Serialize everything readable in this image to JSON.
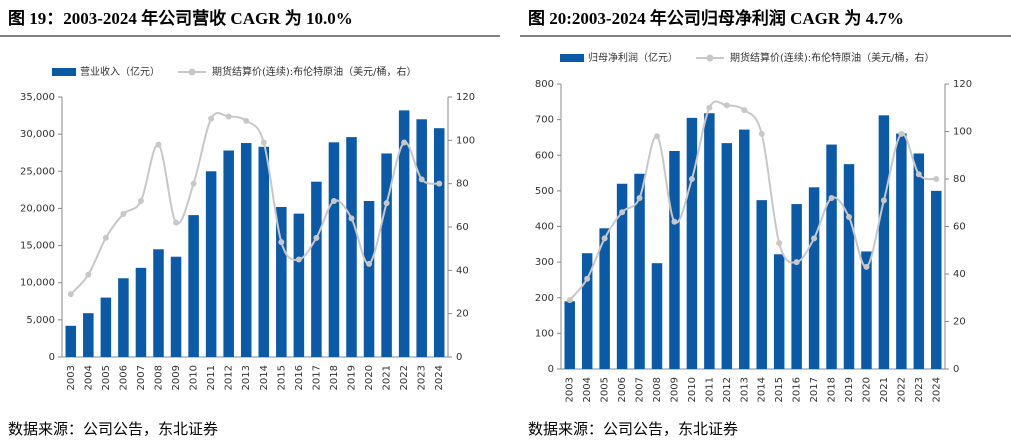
{
  "chart_data": [
    {
      "type": "bar",
      "title": "图 19：2003-2024 年公司营收 CAGR 为 10.0%",
      "categories": [
        "2003",
        "2004",
        "2005",
        "2006",
        "2007",
        "2008",
        "2009",
        "2010",
        "2011",
        "2012",
        "2013",
        "2014",
        "2015",
        "2016",
        "2017",
        "2018",
        "2019",
        "2020",
        "2021",
        "2022",
        "2023",
        "2024"
      ],
      "series": [
        {
          "name": "营业收入（亿元）",
          "color": "#0b5aa8",
          "values": [
            4200,
            5900,
            8000,
            10600,
            12000,
            14500,
            13500,
            19100,
            25000,
            27800,
            28800,
            28300,
            20200,
            19300,
            23600,
            28900,
            29600,
            21000,
            27400,
            33200,
            32000,
            30800
          ]
        },
        {
          "name": "期货结算价(连续):布伦特原油（美元/桶，右）",
          "color": "#c8c8c8",
          "type": "line",
          "axis": "y2",
          "values": [
            29,
            38,
            55,
            66,
            72,
            98,
            62,
            80,
            110,
            111,
            109,
            99,
            53,
            45,
            55,
            72,
            64,
            43,
            71,
            99,
            82,
            80
          ]
        }
      ],
      "ylim": [
        0,
        35000
      ],
      "yticks": [
        0,
        {
          "value": 5000,
          "label": "5,000"
        },
        {
          "value": 10000,
          "label": "10,000"
        },
        {
          "value": 15000,
          "label": "15,000"
        },
        {
          "value": 20000,
          "label": "20,000"
        },
        {
          "value": 25000,
          "label": "25,000"
        },
        {
          "value": 30000,
          "label": "30,000"
        },
        {
          "value": 35000,
          "label": "35,000"
        }
      ],
      "y2lim": [
        0,
        120
      ],
      "y2ticks": [
        0,
        20,
        40,
        60,
        80,
        100,
        120
      ],
      "source": "数据来源：公司公告，东北证券"
    },
    {
      "type": "bar",
      "title": "图 20:2003-2024 年公司归母净利润 CAGR 为 4.7%",
      "categories": [
        "2003",
        "2004",
        "2005",
        "2006",
        "2007",
        "2008",
        "2009",
        "2010",
        "2011",
        "2012",
        "2013",
        "2014",
        "2015",
        "2016",
        "2017",
        "2018",
        "2019",
        "2020",
        "2021",
        "2022",
        "2023",
        "2024"
      ],
      "series": [
        {
          "name": "归母净利润（亿元）",
          "color": "#0b5aa8",
          "values": [
            190,
            325,
            395,
            520,
            548,
            297,
            612,
            705,
            718,
            634,
            672,
            474,
            322,
            463,
            510,
            630,
            575,
            330,
            712,
            661,
            605,
            500
          ]
        },
        {
          "name": "期货结算价(连续):布伦特原油（美元/桶，右）",
          "color": "#c8c8c8",
          "type": "line",
          "axis": "y2",
          "values": [
            29,
            38,
            55,
            66,
            72,
            98,
            62,
            80,
            110,
            111,
            109,
            99,
            53,
            45,
            55,
            72,
            64,
            43,
            71,
            99,
            82,
            80
          ]
        }
      ],
      "ylim": [
        0,
        800
      ],
      "yticks": [
        0,
        100,
        200,
        300,
        400,
        500,
        600,
        700,
        800
      ],
      "y2lim": [
        0,
        120
      ],
      "y2ticks": [
        0,
        20,
        40,
        60,
        80,
        100,
        120
      ],
      "source": "数据来源：公司公告，东北证券"
    }
  ]
}
